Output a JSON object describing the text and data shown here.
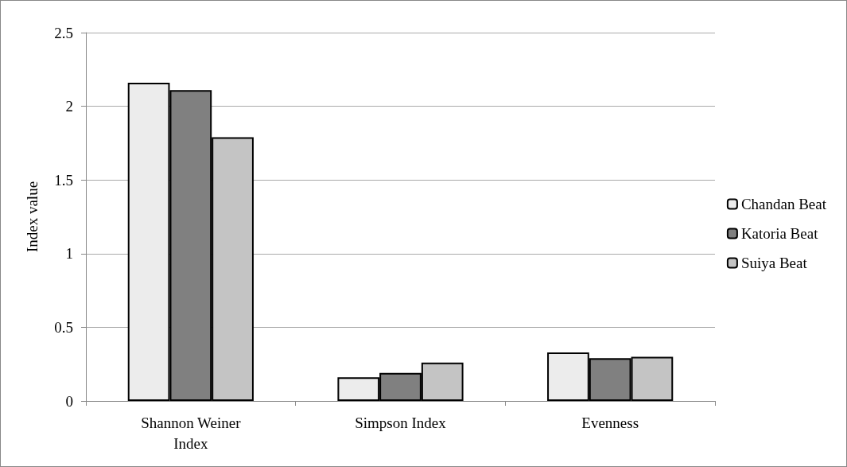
{
  "chart_data": {
    "type": "bar",
    "ylabel": "Index value",
    "categories": [
      "Shannon Weiner\nIndex",
      "Simpson Index",
      "Evenness"
    ],
    "series": [
      {
        "name": "Chandan Beat",
        "color": "#ececec",
        "values": [
          2.16,
          0.16,
          0.33
        ]
      },
      {
        "name": "Katoria Beat",
        "color": "#808080",
        "values": [
          2.11,
          0.19,
          0.29
        ]
      },
      {
        "name": "Suiya Beat",
        "color": "#c4c4c4",
        "values": [
          1.79,
          0.26,
          0.3
        ]
      }
    ],
    "ylim": [
      0,
      2.5
    ],
    "yticks": [
      0,
      0.5,
      1,
      1.5,
      2,
      2.5
    ],
    "grid": "y",
    "legend": "right"
  }
}
